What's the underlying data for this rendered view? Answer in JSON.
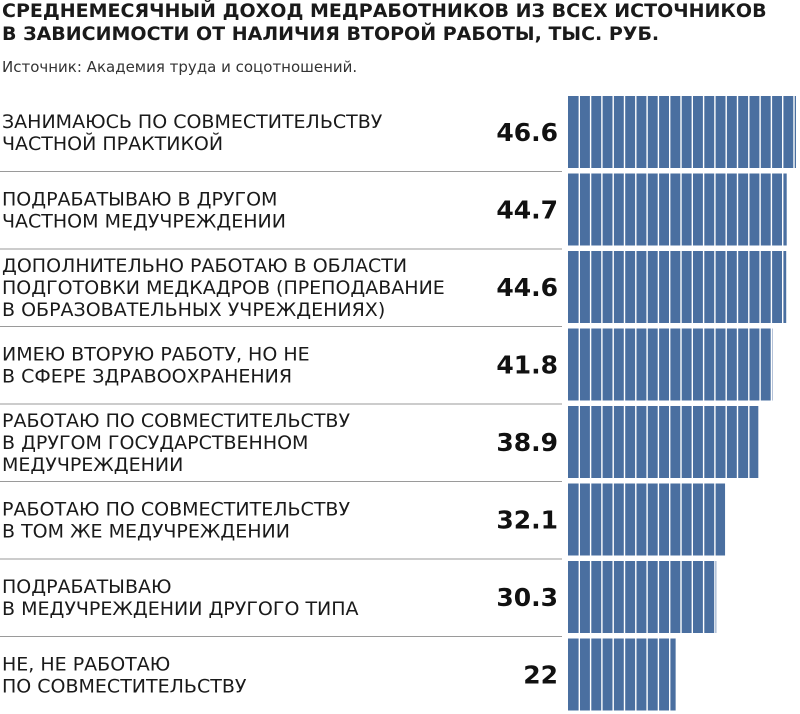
{
  "chart_data": {
    "type": "bar",
    "orientation": "horizontal",
    "title_lines": [
      "СРЕДНЕМЕСЯЧНЫЙ ДОХОД МЕДРАБОТНИКОВ ИЗ ВСЕХ ИСТОЧНИКОВ",
      "В ЗАВИСИМОСТИ ОТ НАЛИЧИЯ ВТОРОЙ РАБОТЫ, ТЫС. РУБ."
    ],
    "source": "Источник: Академия труда и соцотношений.",
    "categories": [
      [
        "ЗАНИМАЮСЬ ПО СОВМЕСТИТЕЛЬСТВУ",
        "ЧАСТНОЙ ПРАКТИКОЙ"
      ],
      [
        "ПОДРАБАТЫВАЮ  В ДРУГОМ",
        "ЧАСТНОМ МЕДУЧРЕЖДЕНИИ"
      ],
      [
        "ДОПОЛНИТЕЛЬНО РАБОТАЮ В ОБЛАСТИ",
        "ПОДГОТОВКИ МЕДКАДРОВ (ПРЕПОДАВАНИЕ",
        "В ОБРАЗОВАТЕЛЬНЫХ УЧРЕЖДЕНИЯХ)"
      ],
      [
        "ИМЕЮ ВТОРУЮ РАБОТУ, НО НЕ",
        "В СФЕРЕ ЗДРАВООХРАНЕНИЯ"
      ],
      [
        "РАБОТАЮ ПО СОВМЕСТИТЕЛЬСТВУ",
        "В ДРУГОМ ГОСУДАРСТВЕННОМ",
        "МЕДУЧРЕЖДЕНИИ"
      ],
      [
        "РАБОТАЮ ПО СОВМЕСТИТЕЛЬСТВУ",
        "В ТОМ ЖЕ МЕДУЧРЕЖДЕНИИ"
      ],
      [
        "ПОДРАБАТЫВАЮ",
        "В МЕДУЧРЕЖДЕНИИ ДРУГОГО ТИПА"
      ],
      [
        "НЕ, НЕ РАБОТАЮ",
        "ПО СОВМЕСТИТЕЛЬСТВУ"
      ]
    ],
    "value_labels": [
      "46.6",
      "44.7",
      "44.6",
      "41.8",
      "38.9",
      "32.1",
      "30.3",
      "22"
    ],
    "values": [
      46.6,
      44.7,
      44.6,
      41.8,
      38.9,
      32.1,
      30.3,
      22
    ],
    "xlim": [
      0,
      46.6
    ],
    "bar_color": "#4a6fa0",
    "stripe_color": "#ffffff",
    "grid": false,
    "legend": "none"
  }
}
